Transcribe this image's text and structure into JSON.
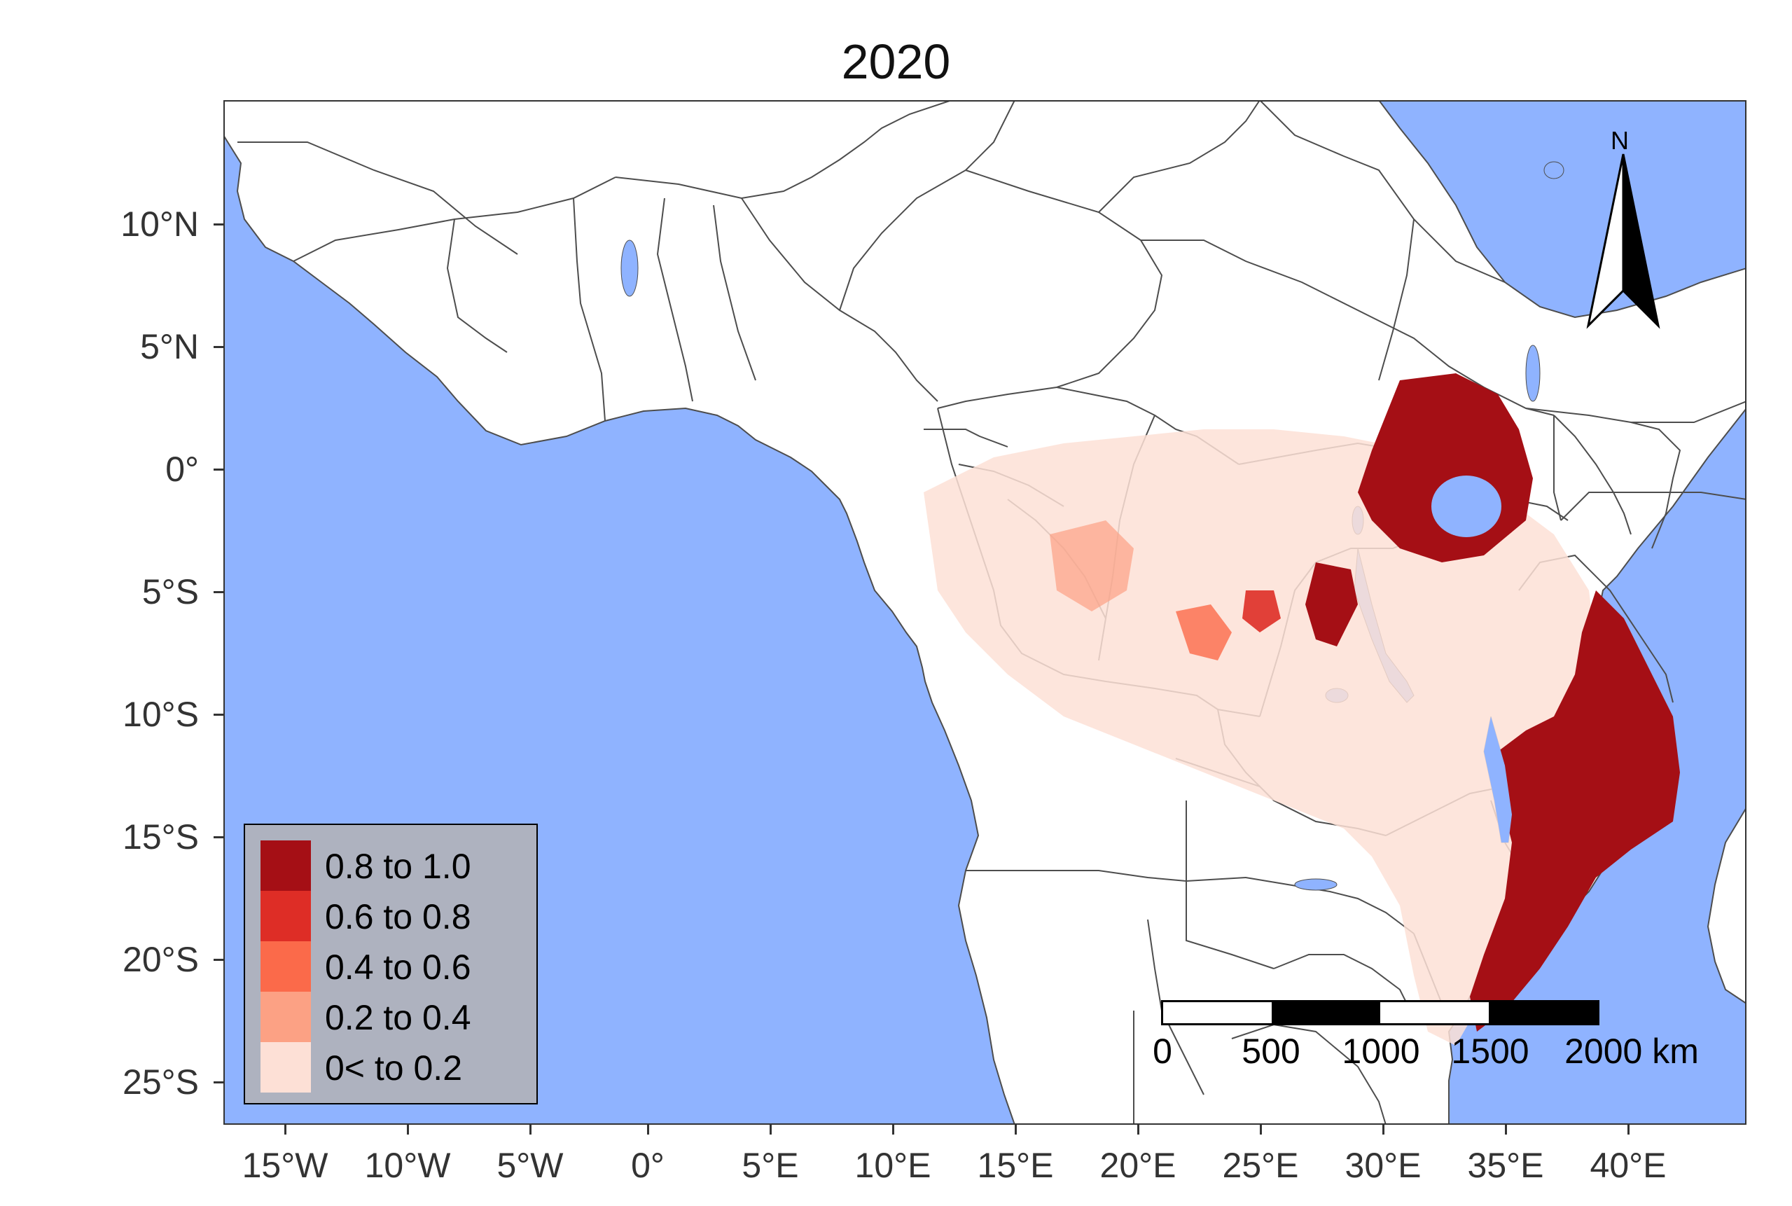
{
  "title": "2020",
  "axes": {
    "y_labels": [
      "10°N",
      "5°N",
      "0°",
      "5°S",
      "10°S",
      "15°S",
      "20°S",
      "25°S"
    ],
    "x_labels": [
      "15°W",
      "10°W",
      "5°W",
      "0°",
      "5°E",
      "10°E",
      "15°E",
      "20°E",
      "25°E",
      "30°E",
      "35°E",
      "40°E"
    ]
  },
  "legend": {
    "items": [
      {
        "label": "0.8 to 1.0",
        "color": "#a50f15"
      },
      {
        "label": "0.6 to 0.8",
        "color": "#de2d26"
      },
      {
        "label": "0.4 to 0.6",
        "color": "#fb6a4a"
      },
      {
        "label": "0.2 to 0.4",
        "color": "#fca184"
      },
      {
        "label": "0< to 0.2",
        "color": "#fde0d6"
      }
    ]
  },
  "scale_bar": {
    "labels": [
      "0",
      "500",
      "1000",
      "1500",
      "2000 km"
    ]
  },
  "north_arrow": {
    "label": "N"
  },
  "colors": {
    "ocean": "#8fb3ff",
    "land": "#ffffff",
    "border": "#4d4d4d"
  }
}
